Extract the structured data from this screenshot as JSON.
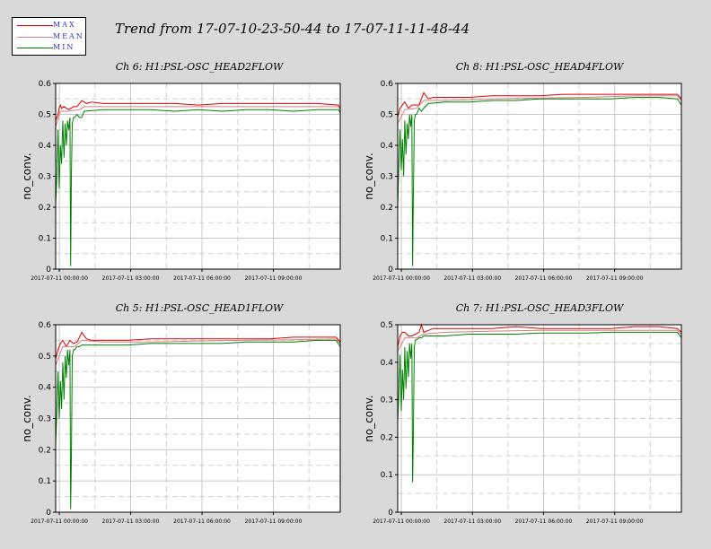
{
  "title": "Trend from 17-07-10-23-50-44 to 17-07-11-11-48-44",
  "legend": [
    {
      "label": "MAX",
      "color": "#e00000"
    },
    {
      "label": "MEAN",
      "color": "#d08080"
    },
    {
      "label": "MIN",
      "color": "#008000"
    }
  ],
  "colors": {
    "max": "#e00000",
    "mean": "#d08080",
    "min": "#008000"
  },
  "chart_data": [
    {
      "type": "line",
      "title": "Ch 6: H1:PSL-OSC_HEAD2FLOW",
      "ylabel": "no_conv.",
      "ylim": [
        0,
        0.6
      ],
      "yticks": [
        "0",
        "0.1",
        "0.2",
        "0.3",
        "0.4",
        "0.5",
        "0.6"
      ],
      "xlim": [
        0,
        11.97
      ],
      "xtick_labels": [
        "2017-07-11 00:00:00",
        "2017-07-11 03:00:00",
        "2017-07-11 06:00:00",
        "2017-07-11 09:00:00"
      ],
      "xtick_values": [
        0.155,
        3.155,
        6.155,
        9.155
      ],
      "grid": true,
      "series": [
        {
          "name": "MAX",
          "x": [
            0.0,
            0.1,
            0.15,
            0.2,
            0.25,
            0.35,
            0.45,
            0.55,
            0.65,
            0.75,
            0.9,
            1.1,
            1.3,
            1.5,
            2,
            3,
            4,
            5,
            6,
            7,
            8,
            9,
            10,
            11,
            11.9,
            11.97
          ],
          "values": [
            0.48,
            0.5,
            0.52,
            0.53,
            0.52,
            0.525,
            0.52,
            0.515,
            0.52,
            0.525,
            0.525,
            0.545,
            0.535,
            0.54,
            0.535,
            0.535,
            0.535,
            0.535,
            0.53,
            0.535,
            0.535,
            0.535,
            0.535,
            0.535,
            0.53,
            0.515
          ]
        },
        {
          "name": "MEAN",
          "x": [
            0.0,
            0.2,
            0.5,
            1.0,
            1.2,
            2,
            4,
            6,
            8,
            10,
            11.9,
            11.97
          ],
          "values": [
            0.46,
            0.51,
            0.51,
            0.515,
            0.525,
            0.525,
            0.525,
            0.525,
            0.525,
            0.525,
            0.525,
            0.515
          ]
        },
        {
          "name": "MIN",
          "x": [
            0.0,
            0.05,
            0.1,
            0.15,
            0.2,
            0.25,
            0.3,
            0.35,
            0.4,
            0.45,
            0.5,
            0.55,
            0.6,
            0.63,
            0.66,
            0.7,
            0.75,
            0.8,
            0.9,
            1.0,
            1.1,
            1.2,
            2,
            3,
            4,
            5,
            6,
            7,
            8,
            9,
            10,
            11,
            11.9,
            11.97
          ],
          "values": [
            0.21,
            0.3,
            0.45,
            0.26,
            0.4,
            0.34,
            0.48,
            0.36,
            0.47,
            0.4,
            0.48,
            0.45,
            0.49,
            0.01,
            0.3,
            0.47,
            0.49,
            0.49,
            0.5,
            0.49,
            0.49,
            0.51,
            0.515,
            0.515,
            0.515,
            0.51,
            0.515,
            0.51,
            0.515,
            0.515,
            0.51,
            0.515,
            0.515,
            0.505
          ]
        }
      ]
    },
    {
      "type": "line",
      "title": "Ch 8: H1:PSL-OSC_HEAD4FLOW",
      "ylabel": "no_conv.",
      "ylim": [
        0,
        0.6
      ],
      "yticks": [
        "0",
        "0.1",
        "0.2",
        "0.3",
        "0.4",
        "0.5",
        "0.6"
      ],
      "xlim": [
        0,
        11.97
      ],
      "xtick_labels": [
        "2017-07-11 00:00:00",
        "2017-07-11 03:00:00",
        "2017-07-11 06:00:00",
        "2017-07-11 09:00:00"
      ],
      "xtick_values": [
        0.155,
        3.155,
        6.155,
        9.155
      ],
      "grid": true,
      "series": [
        {
          "name": "MAX",
          "x": [
            0.0,
            0.1,
            0.2,
            0.3,
            0.45,
            0.6,
            0.75,
            0.9,
            1.1,
            1.3,
            1.5,
            2,
            3,
            4,
            5,
            6,
            7,
            8,
            9,
            10,
            11,
            11.8,
            11.97
          ],
          "values": [
            0.49,
            0.52,
            0.53,
            0.54,
            0.52,
            0.53,
            0.53,
            0.53,
            0.57,
            0.55,
            0.555,
            0.555,
            0.555,
            0.56,
            0.56,
            0.56,
            0.565,
            0.565,
            0.565,
            0.565,
            0.565,
            0.565,
            0.55
          ]
        },
        {
          "name": "MEAN",
          "x": [
            0.0,
            0.3,
            0.8,
            1.1,
            2,
            4,
            6,
            8,
            10,
            11.8,
            11.97
          ],
          "values": [
            0.47,
            0.515,
            0.52,
            0.545,
            0.545,
            0.55,
            0.553,
            0.555,
            0.56,
            0.56,
            0.545
          ]
        },
        {
          "name": "MIN",
          "x": [
            0.0,
            0.05,
            0.1,
            0.15,
            0.2,
            0.25,
            0.3,
            0.35,
            0.4,
            0.45,
            0.5,
            0.55,
            0.6,
            0.63,
            0.66,
            0.7,
            0.75,
            0.8,
            0.9,
            1.0,
            1.1,
            1.3,
            2,
            3,
            4,
            5,
            6,
            7,
            8,
            9,
            10,
            11,
            11.8,
            11.97
          ],
          "values": [
            0.2,
            0.34,
            0.45,
            0.32,
            0.42,
            0.3,
            0.48,
            0.37,
            0.47,
            0.42,
            0.5,
            0.46,
            0.5,
            0.01,
            0.22,
            0.48,
            0.5,
            0.5,
            0.52,
            0.51,
            0.52,
            0.535,
            0.54,
            0.54,
            0.545,
            0.545,
            0.55,
            0.55,
            0.55,
            0.55,
            0.555,
            0.555,
            0.55,
            0.53
          ]
        }
      ]
    },
    {
      "type": "line",
      "title": "Ch 5: H1:PSL-OSC_HEAD1FLOW",
      "ylabel": "no_conv.",
      "ylim": [
        0,
        0.6
      ],
      "yticks": [
        "0",
        "0.1",
        "0.2",
        "0.3",
        "0.4",
        "0.5",
        "0.6"
      ],
      "xlim": [
        0,
        11.97
      ],
      "xtick_labels": [
        "2017-07-11 00:00:00",
        "2017-07-11 03:00:00",
        "2017-07-11 06:00:00",
        "2017-07-11 09:00:00"
      ],
      "xtick_values": [
        0.155,
        3.155,
        6.155,
        9.155
      ],
      "grid": true,
      "series": [
        {
          "name": "MAX",
          "x": [
            0.0,
            0.1,
            0.2,
            0.3,
            0.45,
            0.6,
            0.75,
            0.9,
            1.1,
            1.3,
            1.5,
            2,
            3,
            4,
            5,
            6,
            7,
            8,
            9,
            10,
            11,
            11.8,
            11.97
          ],
          "values": [
            0.49,
            0.52,
            0.54,
            0.55,
            0.53,
            0.55,
            0.54,
            0.545,
            0.575,
            0.555,
            0.55,
            0.55,
            0.55,
            0.555,
            0.555,
            0.555,
            0.555,
            0.555,
            0.555,
            0.56,
            0.56,
            0.56,
            0.545
          ]
        },
        {
          "name": "MEAN",
          "x": [
            0.0,
            0.3,
            0.8,
            1.1,
            2,
            4,
            6,
            8,
            10,
            11.8,
            11.97
          ],
          "values": [
            0.47,
            0.53,
            0.53,
            0.55,
            0.545,
            0.545,
            0.548,
            0.55,
            0.552,
            0.555,
            0.54
          ]
        },
        {
          "name": "MIN",
          "x": [
            0.0,
            0.05,
            0.1,
            0.15,
            0.2,
            0.25,
            0.3,
            0.35,
            0.4,
            0.45,
            0.5,
            0.55,
            0.6,
            0.63,
            0.66,
            0.7,
            0.75,
            0.8,
            0.9,
            1.0,
            1.1,
            1.3,
            2,
            3,
            4,
            5,
            6,
            7,
            8,
            9,
            10,
            11,
            11.8,
            11.97
          ],
          "values": [
            0.22,
            0.32,
            0.45,
            0.3,
            0.42,
            0.33,
            0.48,
            0.36,
            0.5,
            0.43,
            0.52,
            0.47,
            0.52,
            0.01,
            0.17,
            0.5,
            0.52,
            0.52,
            0.53,
            0.53,
            0.535,
            0.535,
            0.535,
            0.535,
            0.54,
            0.54,
            0.54,
            0.54,
            0.545,
            0.545,
            0.545,
            0.55,
            0.55,
            0.53
          ]
        }
      ]
    },
    {
      "type": "line",
      "title": "Ch 7: H1:PSL-OSC_HEAD3FLOW",
      "ylabel": "no_conv.",
      "ylim": [
        0,
        0.5
      ],
      "yticks": [
        "0",
        "0.1",
        "0.2",
        "0.3",
        "0.4",
        "0.5"
      ],
      "xlim": [
        0,
        11.97
      ],
      "xtick_labels": [
        "2017-07-11 00:00:00",
        "2017-07-11 03:00:00",
        "2017-07-11 06:00:00",
        "2017-07-11 09:00:00"
      ],
      "xtick_values": [
        0.155,
        3.155,
        6.155,
        9.155
      ],
      "grid": true,
      "series": [
        {
          "name": "MAX",
          "x": [
            0.0,
            0.1,
            0.2,
            0.3,
            0.45,
            0.6,
            0.75,
            0.9,
            1.0,
            1.1,
            1.3,
            1.5,
            2,
            3,
            4,
            5,
            6,
            7,
            8,
            9,
            10,
            11,
            11.8,
            11.97
          ],
          "values": [
            0.44,
            0.47,
            0.48,
            0.48,
            0.47,
            0.47,
            0.475,
            0.48,
            0.5,
            0.48,
            0.485,
            0.49,
            0.49,
            0.49,
            0.49,
            0.495,
            0.49,
            0.49,
            0.49,
            0.49,
            0.495,
            0.495,
            0.49,
            0.48
          ]
        },
        {
          "name": "MEAN",
          "x": [
            0.0,
            0.3,
            0.8,
            1.1,
            2,
            4,
            6,
            8,
            10,
            11.8,
            11.97
          ],
          "values": [
            0.43,
            0.465,
            0.465,
            0.475,
            0.48,
            0.483,
            0.485,
            0.485,
            0.485,
            0.485,
            0.475
          ]
        },
        {
          "name": "MIN",
          "x": [
            0.0,
            0.05,
            0.1,
            0.15,
            0.2,
            0.25,
            0.3,
            0.35,
            0.4,
            0.45,
            0.5,
            0.55,
            0.6,
            0.63,
            0.66,
            0.7,
            0.75,
            0.8,
            0.9,
            1.0,
            1.1,
            1.3,
            2,
            3,
            4,
            5,
            6,
            7,
            8,
            9,
            10,
            11,
            11.8,
            11.97
          ],
          "values": [
            0.24,
            0.32,
            0.42,
            0.27,
            0.38,
            0.3,
            0.44,
            0.33,
            0.43,
            0.36,
            0.45,
            0.41,
            0.45,
            0.08,
            0.2,
            0.44,
            0.46,
            0.46,
            0.465,
            0.465,
            0.47,
            0.47,
            0.47,
            0.475,
            0.475,
            0.475,
            0.478,
            0.478,
            0.478,
            0.48,
            0.48,
            0.48,
            0.48,
            0.465
          ]
        }
      ]
    }
  ]
}
